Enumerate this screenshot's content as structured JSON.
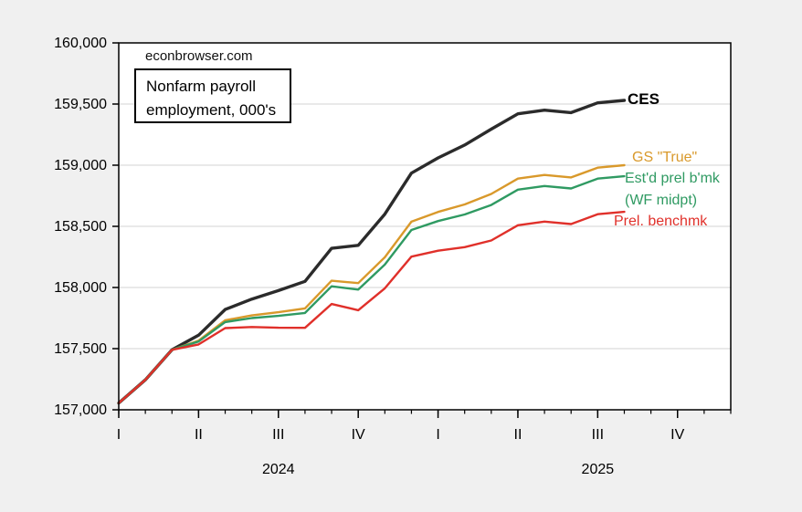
{
  "page": {
    "background": "#f0f0f0",
    "plot_background": "#ffffff",
    "grid_color": "#d3d3d3",
    "axis_color": "#000000"
  },
  "watermark": "econbrowser.com",
  "note_box": {
    "line1": "Nonfarm payroll",
    "line2": "employment, 000's"
  },
  "annotations": {
    "ces_label": "CES",
    "gs_label": "GS \"True\"",
    "wf_label_line1": "Est'd prel b'mk",
    "wf_label_line2": "(WF midpt)",
    "prelim_label": "Prel. benchmk"
  },
  "chart_data": {
    "type": "line",
    "title": "Nonfarm payroll employment, 000's",
    "source_watermark": "econbrowser.com",
    "x_unit": "month",
    "months": [
      "Jan 2024",
      "Feb 2024",
      "Mar 2024",
      "Apr 2024",
      "May 2024",
      "Jun 2024",
      "Jul 2024",
      "Aug 2024",
      "Sep 2024",
      "Oct 2024",
      "Nov 2024",
      "Dec 2024",
      "Jan 2025",
      "Feb 2025",
      "Mar 2025",
      "Apr 2025",
      "May 2025",
      "Jun 2025",
      "Jul 2025",
      "Aug 2025"
    ],
    "series": [
      {
        "name": "CES",
        "color": "#2b2b2b",
        "values": [
          157055,
          157245,
          157490,
          157610,
          157820,
          157905,
          157975,
          158050,
          158320,
          158345,
          158600,
          158935,
          159060,
          159165,
          159295,
          159420,
          159450,
          159430,
          159510,
          159530
        ]
      },
      {
        "name": "GS \"True\"",
        "color": "#d9992b",
        "values": [
          157055,
          157245,
          157490,
          157566,
          157732,
          157772,
          157798,
          157829,
          158055,
          158036,
          158247,
          158538,
          158618,
          158679,
          158765,
          158890,
          158920,
          158900,
          158980,
          159000
        ]
      },
      {
        "name": "Est'd prel b'mk (WF midpt)",
        "color": "#2f9a62",
        "values": [
          157055,
          157245,
          157490,
          157558,
          157717,
          157750,
          157768,
          157792,
          158010,
          157983,
          158187,
          158470,
          158543,
          158597,
          158675,
          158800,
          158830,
          158810,
          158890,
          158910
        ]
      },
      {
        "name": "Prel. benchmk",
        "color": "#e0302a",
        "values": [
          157055,
          157245,
          157490,
          157534,
          157668,
          157677,
          157671,
          157670,
          157865,
          157814,
          157993,
          158252,
          158301,
          158330,
          158384,
          158509,
          158539,
          158519,
          158599,
          158619
        ]
      }
    ],
    "ylim": [
      157000,
      160000
    ],
    "y_ticks": [
      157000,
      157500,
      158000,
      158500,
      159000,
      159500,
      160000
    ],
    "y_tick_labels": [
      "157,000",
      "157,500",
      "158,000",
      "158,500",
      "159,000",
      "159,500",
      "160,000"
    ],
    "x_axis": {
      "months_total": 23,
      "quarter_labels": [
        "I",
        "II",
        "III",
        "IV",
        "I",
        "II",
        "III",
        "IV"
      ],
      "quarter_positions": [
        0,
        3,
        6,
        9,
        12,
        15,
        18,
        21
      ],
      "year_labels": [
        {
          "text": "2024",
          "position": 6
        },
        {
          "text": "2025",
          "position": 18
        }
      ]
    },
    "grid": "horizontal",
    "legend_position": "end-of-line labels"
  }
}
